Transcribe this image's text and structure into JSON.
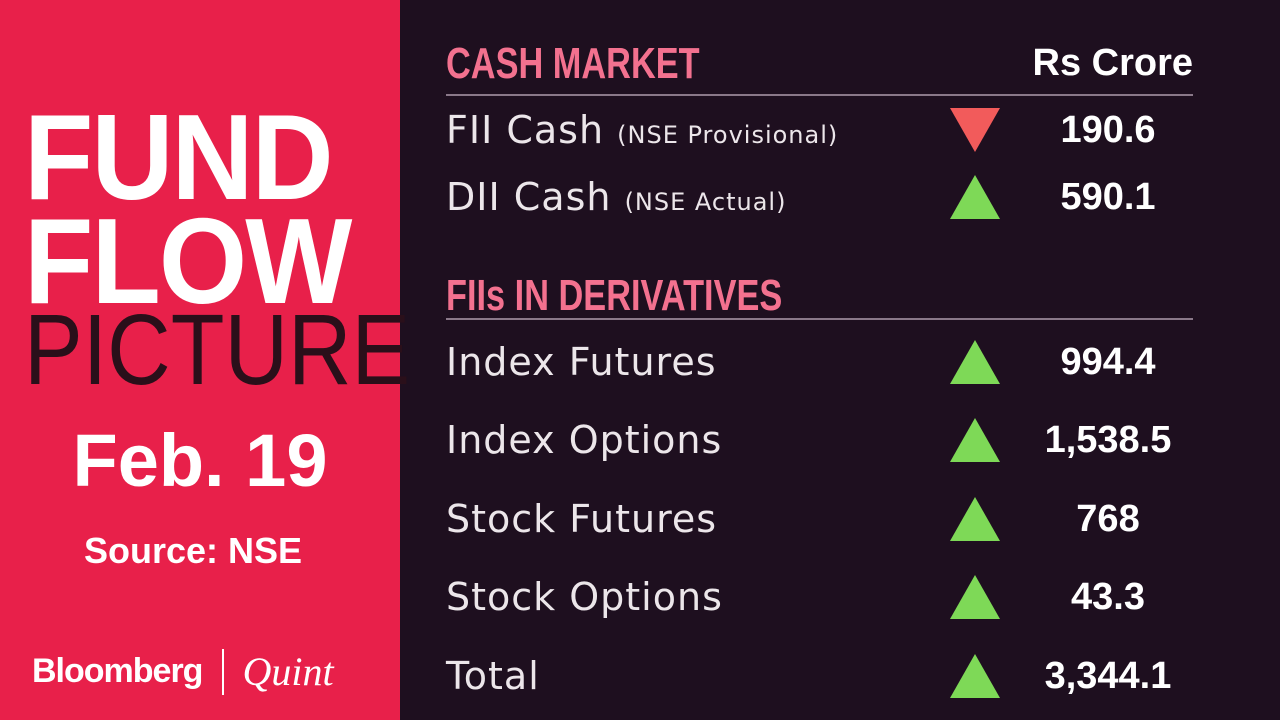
{
  "left": {
    "line1": "FUND",
    "line2": "FLOW",
    "line3": "PICTURE",
    "date": "Feb. 19",
    "source": "Source: NSE",
    "logo_left": "Bloomberg",
    "logo_right": "Quint"
  },
  "cash": {
    "title": "CASH MARKET",
    "unit": "Rs Crore",
    "rows": [
      {
        "label": "FII Cash",
        "sub": "(NSE Provisional)",
        "direction": "down",
        "value": "190.6"
      },
      {
        "label": "DII Cash",
        "sub": "(NSE Actual)",
        "direction": "up",
        "value": "590.1"
      }
    ]
  },
  "derivatives": {
    "title": "FIIs IN DERIVATIVES",
    "rows": [
      {
        "label": "Index Futures",
        "direction": "up",
        "value": "994.4"
      },
      {
        "label": "Index Options",
        "direction": "up",
        "value": "1,538.5"
      },
      {
        "label": "Stock Futures",
        "direction": "up",
        "value": "768"
      },
      {
        "label": "Stock Options",
        "direction": "up",
        "value": "43.3"
      },
      {
        "label": "Total",
        "direction": "up",
        "value": "3,344.1"
      }
    ]
  },
  "colors": {
    "brand_red": "#e8204a",
    "background": "#1e0f1f",
    "header_pink": "#f3718f",
    "up_green": "#7ed957",
    "down_red": "#f25b5b"
  }
}
